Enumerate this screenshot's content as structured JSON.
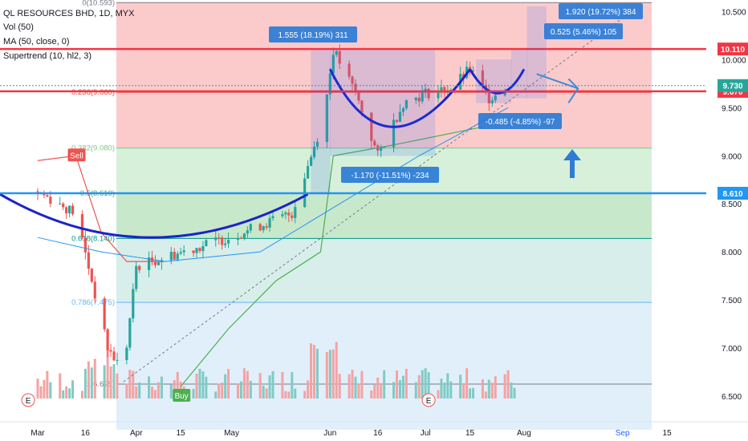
{
  "header": {
    "title": "QL RESOURCES BHD, 1D, MYX",
    "vol": "Vol (50)",
    "ma": "MA (50, close, 0)",
    "supertrend": "Supertrend (10, hl2, 3)"
  },
  "chart_data": {
    "type": "candlestick",
    "symbol": "QL RESOURCES BHD",
    "timeframe": "1D",
    "exchange": "MYX",
    "y_range": [
      6.15,
      10.62
    ],
    "price_ticks": [
      6.5,
      7.0,
      7.5,
      8.0,
      8.5,
      9.0,
      9.5,
      10.0,
      10.5
    ],
    "price_tick_labels": [
      "6.500",
      "7.000",
      "7.500",
      "8.000",
      "8.500",
      "9.000",
      "9.500",
      "10.000",
      "10.500"
    ],
    "x_ticks": [
      {
        "label": "Mar",
        "day": 0
      },
      {
        "label": "16",
        "day": 15
      },
      {
        "label": "Apr",
        "day": 31
      },
      {
        "label": "15",
        "day": 45
      },
      {
        "label": "May",
        "day": 61
      },
      {
        "label": "Jun",
        "day": 92
      },
      {
        "label": "16",
        "day": 107
      },
      {
        "label": "Jul",
        "day": 122
      },
      {
        "label": "15",
        "day": 136
      },
      {
        "label": "Aug",
        "day": 153
      },
      {
        "label": "Sep",
        "day": 184
      },
      {
        "label": "15",
        "day": 198
      }
    ],
    "x_tick_colors": [
      "#131722",
      "#131722",
      "#131722",
      "#131722",
      "#131722",
      "#131722",
      "#131722",
      "#131722",
      "#131722",
      "#131722",
      "#2962ff",
      "#131722"
    ],
    "date_axis_note": "day = days since 1 Mar",
    "fib_levels": [
      {
        "ratio": 0,
        "price": 10.593,
        "label": "0(10.593)",
        "color": "#787b86",
        "fill": "#f7a1a1"
      },
      {
        "ratio": 0.236,
        "price": 9.66,
        "label": "0.236(9.660)",
        "color": "#f44336",
        "fill": "#f7a1a1"
      },
      {
        "ratio": 0.382,
        "price": 9.08,
        "label": "0.382(9.080)",
        "color": "#81c784",
        "fill": "#b7e4b9"
      },
      {
        "ratio": 0.5,
        "price": 8.61,
        "label": "0.5(8.610)",
        "color": "#4caf50",
        "fill": "#9bd5a0"
      },
      {
        "ratio": 0.618,
        "price": 8.14,
        "label": "0.618(8.140)",
        "color": "#009688",
        "fill": "#b6e0d9"
      },
      {
        "ratio": 0.786,
        "price": 7.475,
        "label": "0.786(7.475)",
        "color": "#64b5f6",
        "fill": "#c8e2f7"
      },
      {
        "ratio": 1,
        "price": 6.625,
        "label": "1(6.625)",
        "color": "#787b86",
        "fill": "#d9d9d9"
      }
    ],
    "horizontal_lines": [
      {
        "price": 10.11,
        "label": "10.110",
        "color": "#f23645"
      },
      {
        "price": 9.67,
        "label": "9.670",
        "color": "#f23645"
      },
      {
        "price": 8.61,
        "label": "8.610",
        "color": "#2196f3"
      }
    ],
    "last_price": {
      "price": 9.73,
      "label": "9.730",
      "color": "#26a69a"
    },
    "measurements": [
      {
        "text": "1.555 (18.19%) 311",
        "from_day": 86,
        "to_day": 91
      },
      {
        "text": "-1.170 (-11.51%) -234",
        "from_day": 91,
        "to_day": 107
      },
      {
        "text": "0.525 (5.46%) 105",
        "from_day": 151,
        "to_day": 156
      },
      {
        "text": "1.920 (19.72%) 384",
        "from_day": 156,
        "to_day": 161
      },
      {
        "text": "-0.485 (-4.85%) -97",
        "from_day": 138,
        "to_day": 149
      }
    ],
    "signals": [
      {
        "type": "Sell",
        "day": 12,
        "price": 9.0
      },
      {
        "type": "Buy",
        "day": 45,
        "price": 6.5
      }
    ],
    "event_markers": [
      "E",
      "E"
    ],
    "key_points": [
      {
        "day": 0,
        "price": 8.63
      },
      {
        "day": 12,
        "price": 8.4
      },
      {
        "day": 22,
        "price": 7.0
      },
      {
        "day": 27,
        "price": 6.75
      },
      {
        "day": 31,
        "price": 7.85
      },
      {
        "day": 60,
        "price": 8.15
      },
      {
        "day": 80,
        "price": 8.4
      },
      {
        "day": 90,
        "price": 9.4
      },
      {
        "day": 93,
        "price": 10.1
      },
      {
        "day": 100,
        "price": 9.65
      },
      {
        "day": 107,
        "price": 9.0
      },
      {
        "day": 115,
        "price": 9.55
      },
      {
        "day": 122,
        "price": 9.65
      },
      {
        "day": 130,
        "price": 9.7
      },
      {
        "day": 136,
        "price": 9.9
      },
      {
        "day": 142,
        "price": 9.6
      },
      {
        "day": 148,
        "price": 9.73
      }
    ]
  }
}
